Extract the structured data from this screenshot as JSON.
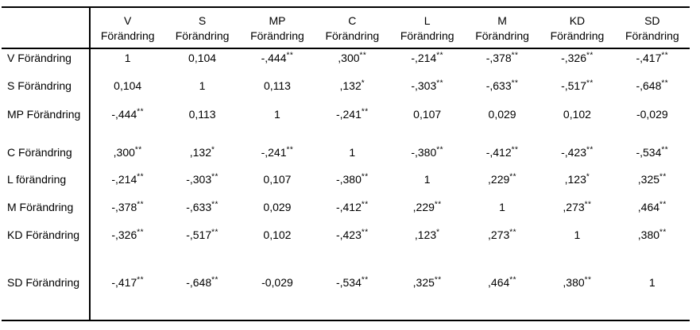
{
  "colors": {
    "background": "#ffffff",
    "text": "#000000",
    "rule": "#000000"
  },
  "table": {
    "corner_label": "",
    "columns": [
      {
        "abbr": "V",
        "label": "Förändring"
      },
      {
        "abbr": "S",
        "label": "Förändring"
      },
      {
        "abbr": "MP",
        "label": "Förändring"
      },
      {
        "abbr": "C",
        "label": "Förändring"
      },
      {
        "abbr": "L",
        "label": "Förändring"
      },
      {
        "abbr": "M",
        "label": "Förändring"
      },
      {
        "abbr": "KD",
        "label": "Förändring"
      },
      {
        "abbr": "SD",
        "label": "Förändring"
      }
    ],
    "rows": [
      {
        "label": "V Förändring",
        "cells": [
          {
            "v": "1",
            "sig": ""
          },
          {
            "v": "0,104",
            "sig": ""
          },
          {
            "v": "-,444",
            "sig": "**"
          },
          {
            "v": ",300",
            "sig": "**"
          },
          {
            "v": "-,214",
            "sig": "**"
          },
          {
            "v": "-,378",
            "sig": "**"
          },
          {
            "v": "-,326",
            "sig": "**"
          },
          {
            "v": "-,417",
            "sig": "**"
          }
        ]
      },
      {
        "label": "S Förändring",
        "cells": [
          {
            "v": "0,104",
            "sig": ""
          },
          {
            "v": "1",
            "sig": ""
          },
          {
            "v": "0,113",
            "sig": ""
          },
          {
            "v": ",132",
            "sig": "*"
          },
          {
            "v": "-,303",
            "sig": "**"
          },
          {
            "v": "-,633",
            "sig": "**"
          },
          {
            "v": "-,517",
            "sig": "**"
          },
          {
            "v": "-,648",
            "sig": "**"
          }
        ]
      },
      {
        "label": "MP Förändring",
        "cells": [
          {
            "v": "-,444",
            "sig": "**"
          },
          {
            "v": "0,113",
            "sig": ""
          },
          {
            "v": "1",
            "sig": ""
          },
          {
            "v": "-,241",
            "sig": "**"
          },
          {
            "v": "0,107",
            "sig": ""
          },
          {
            "v": "0,029",
            "sig": ""
          },
          {
            "v": "0,102",
            "sig": ""
          },
          {
            "v": "-0,029",
            "sig": ""
          }
        ]
      },
      {
        "label": "C Förändring",
        "cells": [
          {
            "v": ",300",
            "sig": "**"
          },
          {
            "v": ",132",
            "sig": "*"
          },
          {
            "v": "-,241",
            "sig": "**"
          },
          {
            "v": "1",
            "sig": ""
          },
          {
            "v": "-,380",
            "sig": "**"
          },
          {
            "v": "-,412",
            "sig": "**"
          },
          {
            "v": "-,423",
            "sig": "**"
          },
          {
            "v": "-,534",
            "sig": "**"
          }
        ]
      },
      {
        "label": "L förändring",
        "cells": [
          {
            "v": "-,214",
            "sig": "**"
          },
          {
            "v": "-,303",
            "sig": "**"
          },
          {
            "v": "0,107",
            "sig": ""
          },
          {
            "v": "-,380",
            "sig": "**"
          },
          {
            "v": "1",
            "sig": ""
          },
          {
            "v": ",229",
            "sig": "**"
          },
          {
            "v": ",123",
            "sig": "*"
          },
          {
            "v": ",325",
            "sig": "**"
          }
        ]
      },
      {
        "label": "M Förändring",
        "cells": [
          {
            "v": "-,378",
            "sig": "**"
          },
          {
            "v": "-,633",
            "sig": "**"
          },
          {
            "v": "0,029",
            "sig": ""
          },
          {
            "v": "-,412",
            "sig": "**"
          },
          {
            "v": ",229",
            "sig": "**"
          },
          {
            "v": "1",
            "sig": ""
          },
          {
            "v": ",273",
            "sig": "**"
          },
          {
            "v": ",464",
            "sig": "**"
          }
        ]
      },
      {
        "label": "KD Förändring",
        "cells": [
          {
            "v": "-,326",
            "sig": "**"
          },
          {
            "v": "-,517",
            "sig": "**"
          },
          {
            "v": "0,102",
            "sig": ""
          },
          {
            "v": "-,423",
            "sig": "**"
          },
          {
            "v": ",123",
            "sig": "*"
          },
          {
            "v": ",273",
            "sig": "**"
          },
          {
            "v": "1",
            "sig": ""
          },
          {
            "v": ",380",
            "sig": "**"
          }
        ]
      },
      {
        "label": "SD Förändring",
        "cells": [
          {
            "v": "-,417",
            "sig": "**"
          },
          {
            "v": "-,648",
            "sig": "**"
          },
          {
            "v": "-0,029",
            "sig": ""
          },
          {
            "v": "-,534",
            "sig": "**"
          },
          {
            "v": ",325",
            "sig": "**"
          },
          {
            "v": ",464",
            "sig": "**"
          },
          {
            "v": ",380",
            "sig": "**"
          },
          {
            "v": "1",
            "sig": ""
          }
        ]
      }
    ]
  }
}
